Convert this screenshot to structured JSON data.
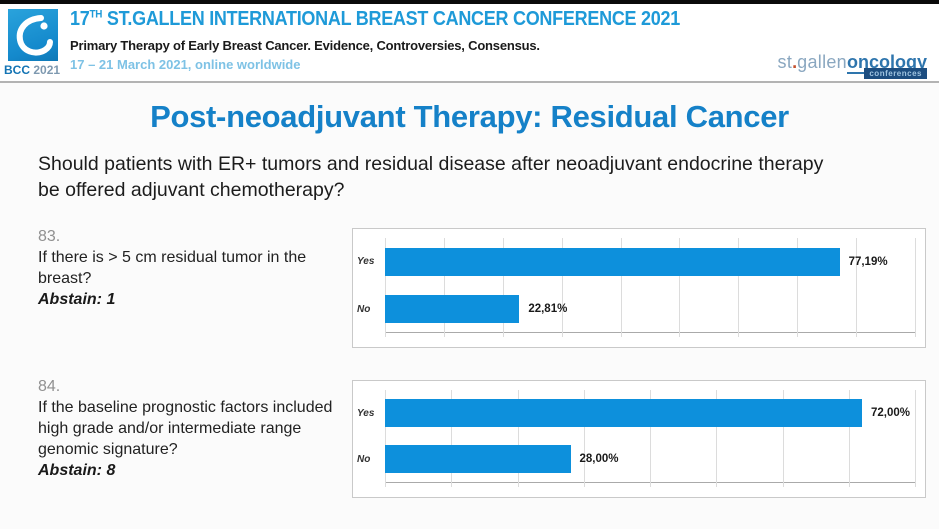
{
  "header": {
    "logo": {
      "bcc": "BCC",
      "year": "2021"
    },
    "title_num": "17",
    "title_sup": "TH",
    "title_rest": " ST.GALLEN INTERNATIONAL BREAST CANCER CONFERENCE 2021",
    "subtitle": "Primary Therapy of Early Breast Cancer. Evidence, Controversies, Consensus.",
    "dates": "17 – 21 March 2021, online worldwide",
    "brand": {
      "part1": "st",
      "dot": ".",
      "part1b": "gallen",
      "part2": "oncology",
      "badge": "conferences"
    }
  },
  "slide": {
    "title": "Post-neoadjuvant Therapy: Residual Cancer",
    "question": "Should patients with ER+ tumors and residual disease after neoadjuvant endocrine therapy be offered adjuvant chemotherapy?"
  },
  "items": [
    {
      "number": "83.",
      "text": "If there is > 5 cm residual tumor in the breast?",
      "abstain": "Abstain: 1"
    },
    {
      "number": "84.",
      "text": "If the baseline prognostic factors included high grade and/or intermediate range genomic signature?",
      "abstain": "Abstain: 8"
    }
  ],
  "chart_data": [
    {
      "type": "bar",
      "orientation": "horizontal",
      "title": "Question 83 voting result",
      "categories": [
        "Yes",
        "No"
      ],
      "values": [
        77.19,
        22.81
      ],
      "value_labels": [
        "77,19%",
        "22,81%"
      ],
      "xlim": [
        0,
        90
      ],
      "gridline_step": 10,
      "grid": true,
      "bar_color": "#0d90dc"
    },
    {
      "type": "bar",
      "orientation": "horizontal",
      "title": "Question 84 voting result",
      "categories": [
        "Yes",
        "No"
      ],
      "values": [
        72.0,
        28.0
      ],
      "value_labels": [
        "72,00%",
        "28,00%"
      ],
      "xlim": [
        0,
        80
      ],
      "gridline_step": 10,
      "grid": true,
      "bar_color": "#0d90dc"
    }
  ],
  "colors": {
    "bar_blue": "#0d90dc",
    "title_blue": "#1581c8",
    "header_blue": "#1e9ad8",
    "date_blue": "#7ec2e5"
  }
}
